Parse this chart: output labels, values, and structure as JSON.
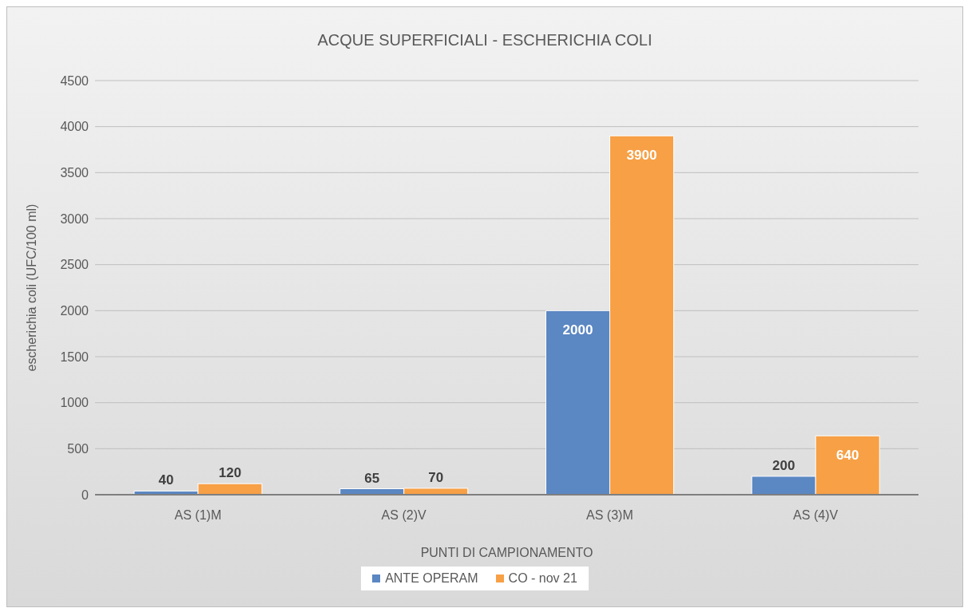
{
  "chart_data": {
    "type": "bar",
    "title": "ACQUE SUPERFICIALI - ESCHERICHIA COLI",
    "xlabel": "PUNTI DI CAMPIONAMENTO",
    "ylabel": "escherichia coli (UFC/100 ml)",
    "categories": [
      "AS (1)M",
      "AS (2)V",
      "AS (3)M",
      "AS (4)V"
    ],
    "series": [
      {
        "name": "ANTE OPERAM",
        "color": "#5b87c2",
        "values": [
          40,
          65,
          2000,
          200
        ]
      },
      {
        "name": "CO - nov 21",
        "color": "#f7a046",
        "values": [
          120,
          70,
          3900,
          640
        ]
      }
    ],
    "ylim": [
      0,
      4500
    ],
    "yticks": [
      0,
      500,
      1000,
      1500,
      2000,
      2500,
      3000,
      3500,
      4000,
      4500
    ],
    "grid": "y",
    "legend": "bottom",
    "data_labels": true
  }
}
